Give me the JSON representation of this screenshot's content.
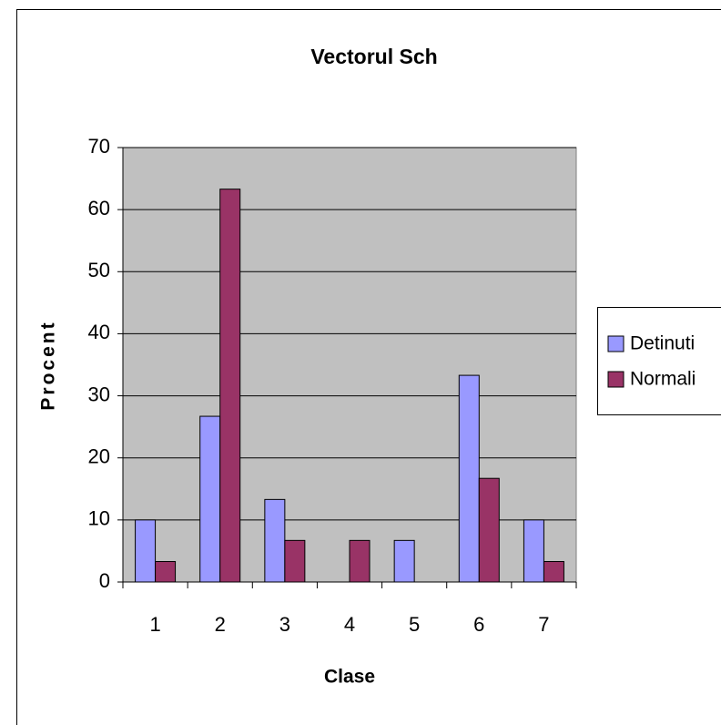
{
  "chart_data": {
    "type": "bar",
    "title": "Vectorul Sch",
    "x_label": "Clase",
    "y_label": "Procent",
    "categories": [
      "1",
      "2",
      "3",
      "4",
      "5",
      "6",
      "7"
    ],
    "series": [
      {
        "name": "Detinuti",
        "color": "#9999ff",
        "values": [
          10,
          26.7,
          13.3,
          0,
          6.7,
          33.3,
          10
        ]
      },
      {
        "name": "Normali",
        "color": "#993366",
        "values": [
          3.3,
          63.3,
          6.7,
          6.7,
          0,
          16.7,
          3.3
        ]
      }
    ],
    "ylim": [
      0,
      70
    ],
    "yticks": [
      0,
      10,
      20,
      30,
      40,
      50,
      60,
      70
    ],
    "grid": true,
    "legend": "right"
  }
}
